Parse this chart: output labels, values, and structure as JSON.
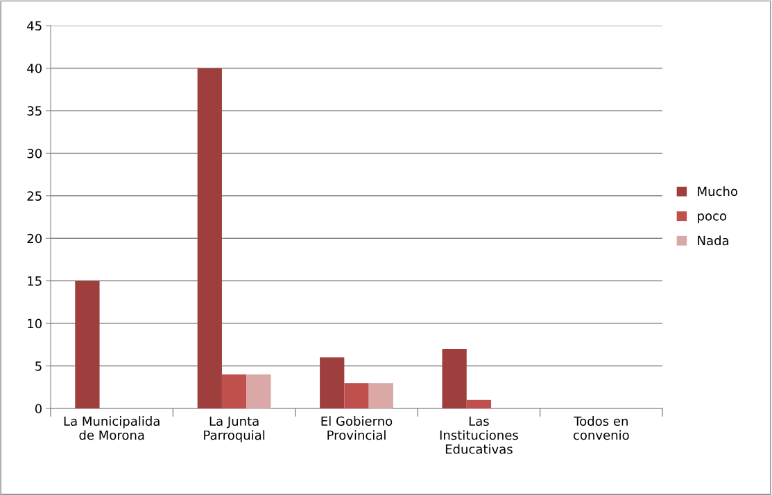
{
  "chart_data": {
    "type": "bar",
    "categories": [
      "La Municipalida\nde Morona",
      "La Junta\nParroquial",
      "El Gobierno\nProvincial",
      "Las\nInstituciones\nEducativas",
      "Todos en\nconvenio"
    ],
    "series": [
      {
        "name": "Mucho",
        "color": "#9e3f3d",
        "values": [
          15,
          40,
          6,
          7,
          0
        ]
      },
      {
        "name": "poco",
        "color": "#c0504d",
        "values": [
          0,
          4,
          3,
          1,
          0
        ]
      },
      {
        "name": "Nada",
        "color": "#d9a8a7",
        "values": [
          0,
          4,
          3,
          0,
          0
        ]
      }
    ],
    "ylim": [
      0,
      45
    ],
    "yticks": [
      0,
      5,
      10,
      15,
      20,
      25,
      30,
      35,
      40,
      45
    ],
    "grid": "y",
    "legend": "right"
  }
}
